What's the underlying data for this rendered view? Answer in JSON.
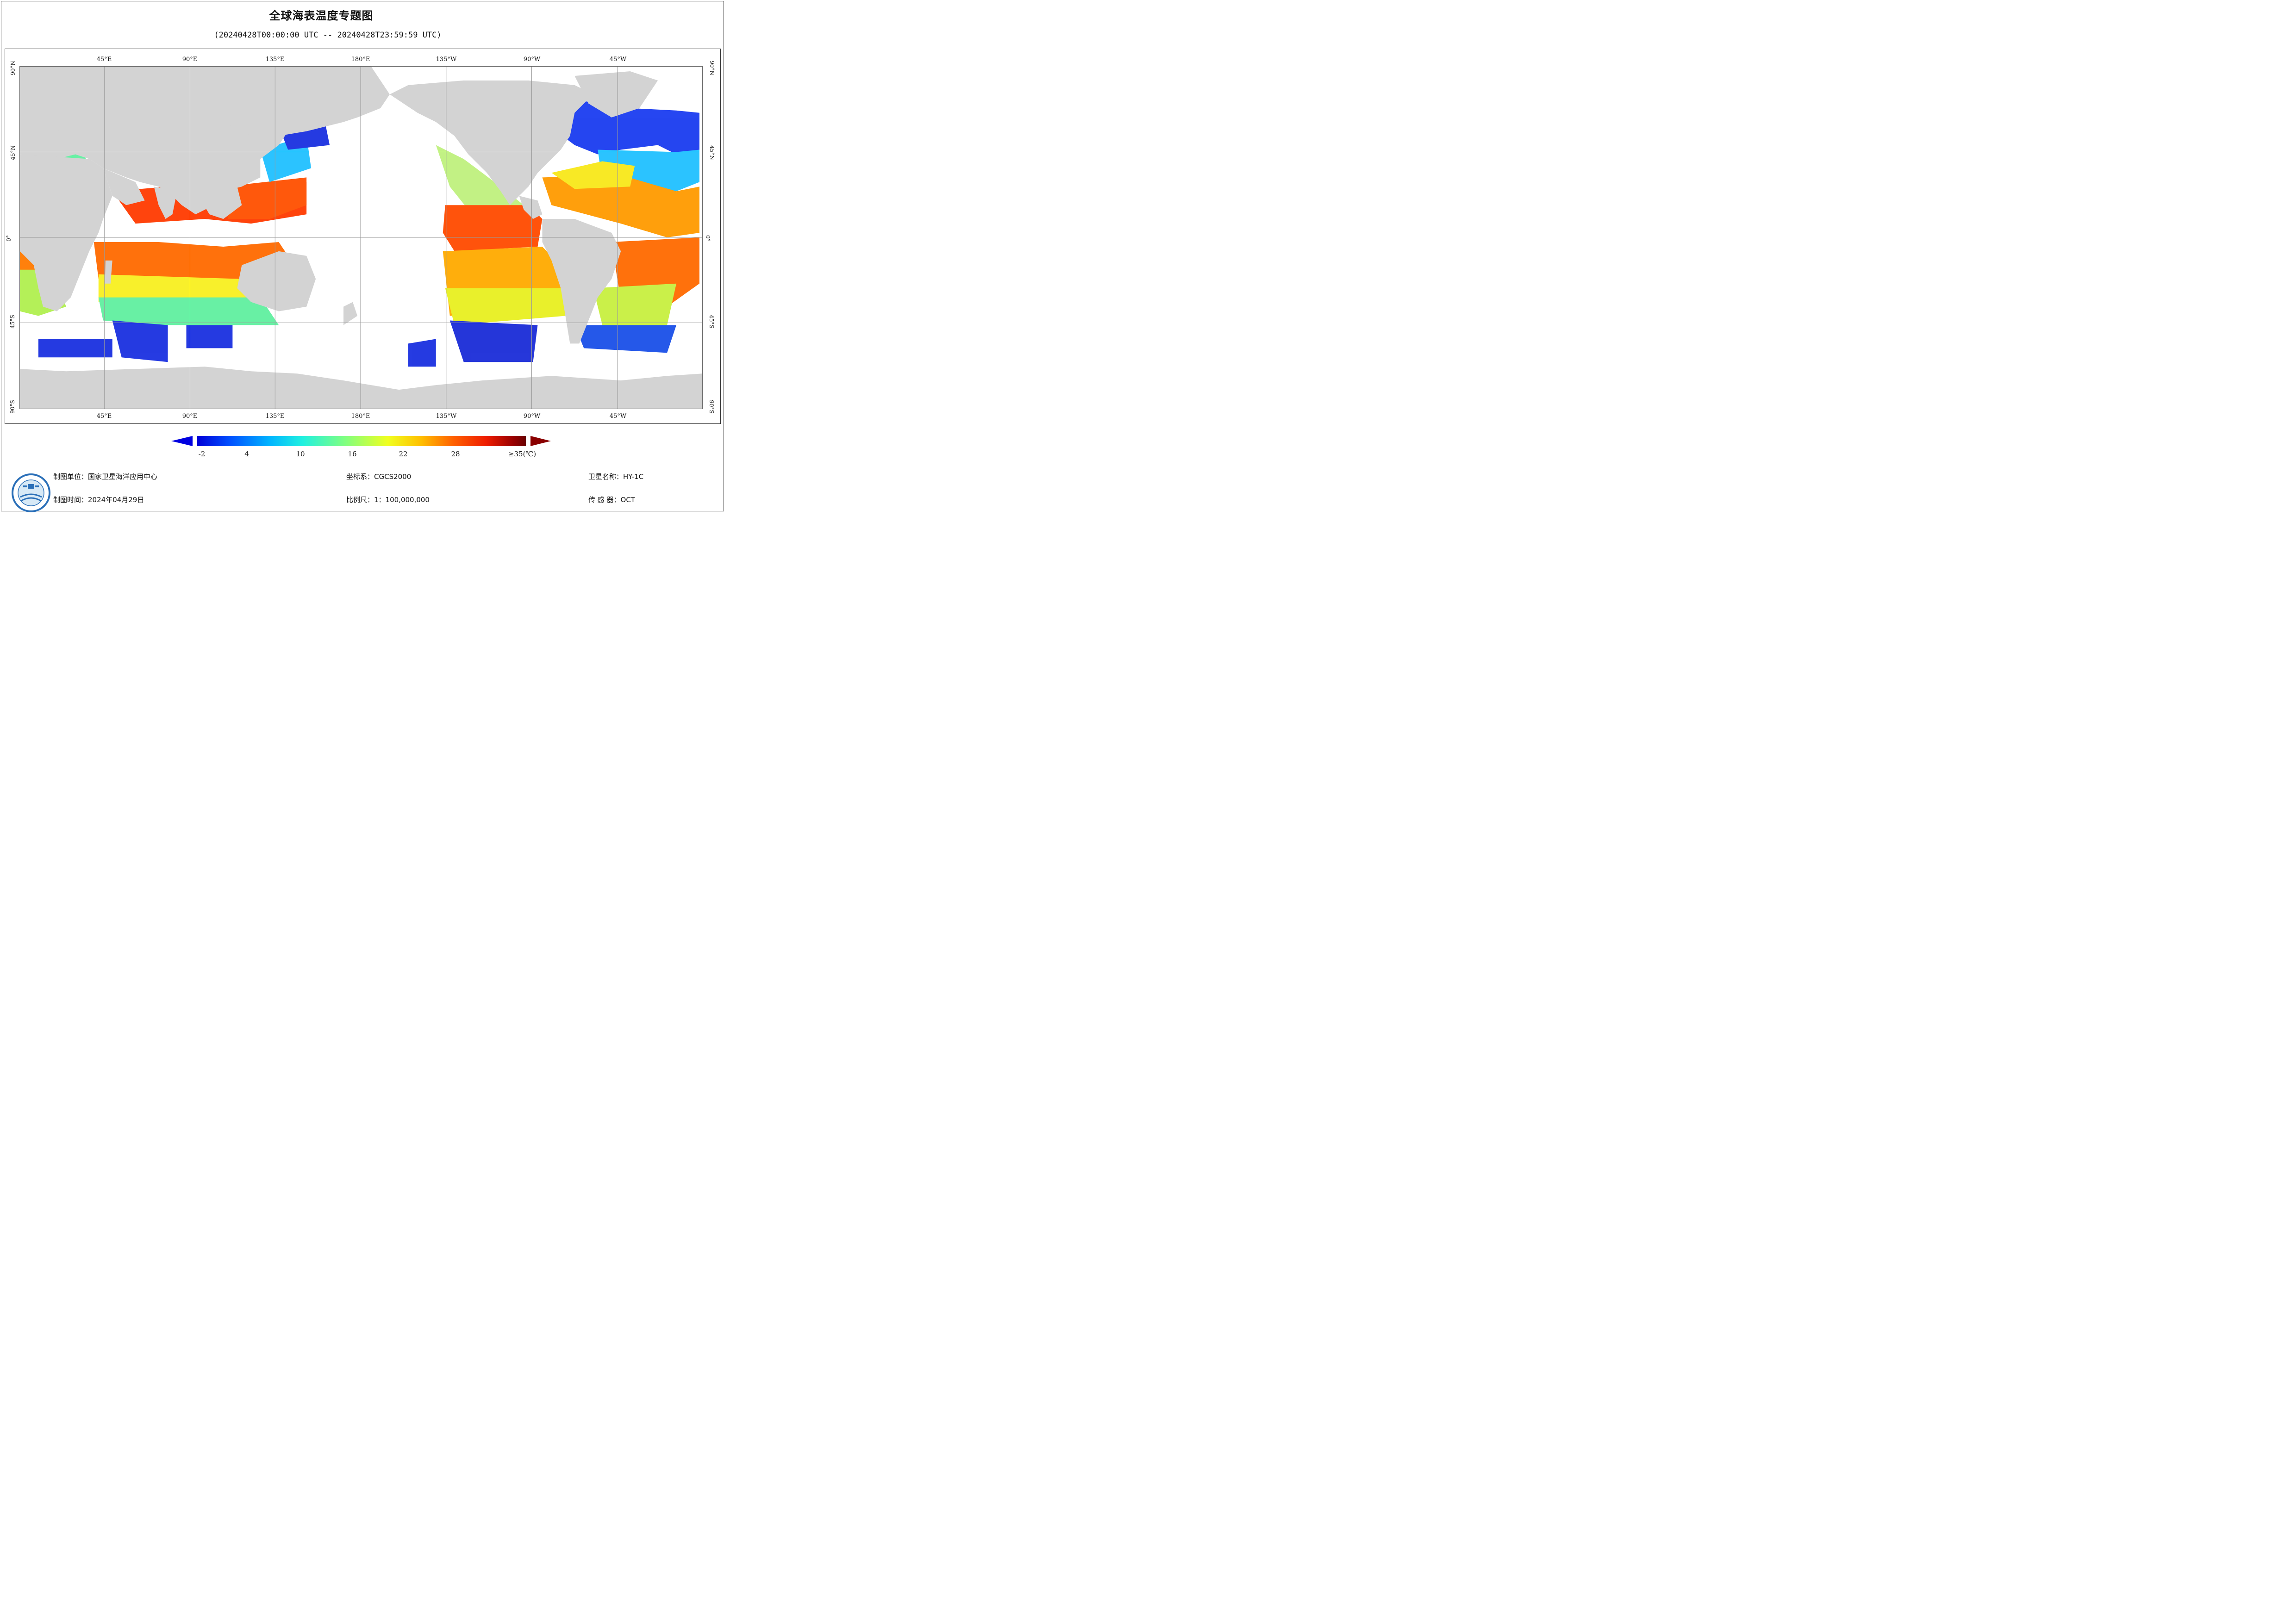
{
  "title": "全球海表温度专题图",
  "subtitle": "(20240428T00:00:00 UTC -- 20240428T23:59:59 UTC)",
  "map": {
    "lon_labels": [
      "45°E",
      "90°E",
      "135°E",
      "180°E",
      "135°W",
      "90°W",
      "45°W"
    ],
    "lat_labels": [
      "90°N",
      "45°N",
      "0°",
      "45°S",
      "90°S"
    ],
    "land_color": "#d3d3d3",
    "graticule_color": "#9a9a9a"
  },
  "colorbar": {
    "ticks": [
      "-2",
      "4",
      "10",
      "16",
      "22",
      "28",
      "≥35(℃)"
    ],
    "min": -2,
    "max": 35,
    "colors": [
      "#0000d8",
      "#0050ff",
      "#00b4ff",
      "#20f0e0",
      "#80ff80",
      "#f0ff20",
      "#ffc000",
      "#ff6000",
      "#ee1c00",
      "#9a0000",
      "#6a0000"
    ]
  },
  "footer": {
    "org": "制图单位：国家卫星海洋应用中心",
    "date": "制图时间：2024年04月29日",
    "crs": "坐标系：CGCS2000",
    "scale": "比例尺：1：100,000,000",
    "satellite": "卫星名称：HY-1C",
    "sensor": "传 感 器：OCT"
  },
  "logo": {
    "icon": "nsoas-logo-icon"
  }
}
